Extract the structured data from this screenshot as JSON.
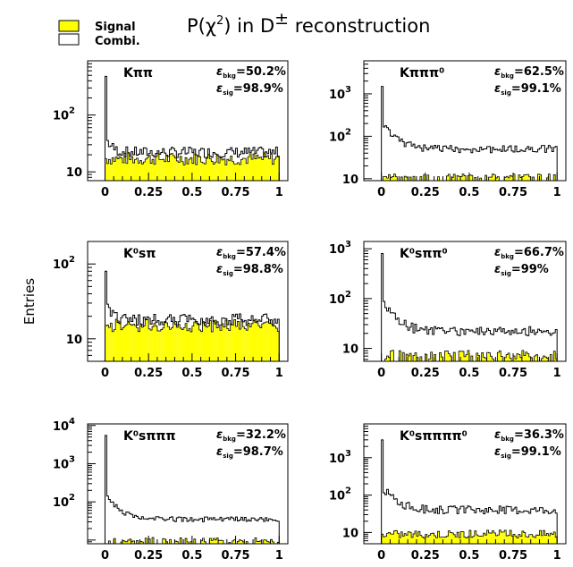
{
  "title": "P(χ²) in D± reconstruction",
  "title_parts": {
    "main": "P(χ",
    "sup2": "2",
    "mid": ") in D",
    "supPM": "±",
    "end": " reconstruction"
  },
  "y_axis_label": "Entries",
  "legend": [
    {
      "label": "Signal",
      "color": "#ffff00"
    },
    {
      "label": "Combi.",
      "color": "#ffffff"
    }
  ],
  "colors": {
    "signal_fill": "#ffff00",
    "outline": "#000000"
  },
  "chart_data": [
    {
      "type": "bar",
      "panel": "top-left",
      "channel": "Kππ",
      "eff_bkg": "=50.2%",
      "eff_sig": "=98.9%",
      "x_ticks": [
        "0",
        "0.25",
        "0.5",
        "0.75",
        "1"
      ],
      "xlim": [
        -0.1,
        1.05
      ],
      "y_scale": "log",
      "ylim": [
        7,
        900
      ],
      "y_ticks": [
        {
          "value": 10,
          "label": "10"
        },
        {
          "value": 100,
          "label": "10",
          "sup": "2"
        }
      ],
      "combi_peak": 480,
      "combi_level": 22,
      "signal_level": 17,
      "signal_jitter": 0.25,
      "combi_jitter": 0.22
    },
    {
      "type": "bar",
      "panel": "top-right",
      "channel": "Kπππ⁰",
      "eff_bkg": "=62.5%",
      "eff_sig": "=99.1%",
      "x_ticks": [
        "0",
        "0.25",
        "0.5",
        "0.75",
        "1"
      ],
      "xlim": [
        -0.1,
        1.05
      ],
      "y_scale": "log",
      "ylim": [
        9,
        6000
      ],
      "y_ticks": [
        {
          "value": 10,
          "label": "10"
        },
        {
          "value": 100,
          "label": "10",
          "sup": "2"
        },
        {
          "value": 1000,
          "label": "10",
          "sup": "3"
        }
      ],
      "combi_peak": 1500,
      "combi_level": 50,
      "combi_decay": true,
      "signal_level": 11.5,
      "signal_jitter": 0.12,
      "combi_jitter": 0.2,
      "signal_sparse": true
    },
    {
      "type": "bar",
      "panel": "middle-left",
      "channel": "K⁰sπ",
      "eff_bkg": "=57.4%",
      "eff_sig": "=98.8%",
      "x_ticks": [
        "0",
        "0.25",
        "0.5",
        "0.75",
        "1"
      ],
      "xlim": [
        -0.1,
        1.05
      ],
      "y_scale": "log",
      "ylim": [
        5,
        200
      ],
      "y_ticks": [
        {
          "value": 10,
          "label": "10"
        },
        {
          "value": 100,
          "label": "10",
          "sup": "2"
        }
      ],
      "combi_peak": 80,
      "combi_level": 18,
      "signal_level": 15,
      "signal_jitter": 0.2,
      "combi_jitter": 0.18
    },
    {
      "type": "bar",
      "panel": "middle-right",
      "channel": "K⁰sππ⁰",
      "eff_bkg": "=66.7%",
      "eff_sig": "=99%",
      "x_ticks": [
        "0",
        "0.25",
        "0.5",
        "0.75",
        "1"
      ],
      "xlim": [
        -0.1,
        1.05
      ],
      "y_scale": "log",
      "ylim": [
        5.5,
        1400
      ],
      "y_ticks": [
        {
          "value": 10,
          "label": "10"
        },
        {
          "value": 100,
          "label": "10",
          "sup": "2"
        },
        {
          "value": 1000,
          "label": "10",
          "sup": "3"
        }
      ],
      "combi_peak": 800,
      "combi_level": 22,
      "combi_decay": true,
      "signal_level": 7.5,
      "signal_jitter": 0.2,
      "combi_jitter": 0.22,
      "signal_sparse": true
    },
    {
      "type": "bar",
      "panel": "bottom-left",
      "channel": "K⁰sπππ",
      "eff_bkg": "=32.2%",
      "eff_sig": "=98.7%",
      "x_ticks": [
        "0",
        "0.25",
        "0.5",
        "0.75",
        "1"
      ],
      "xlim": [
        -0.1,
        1.05
      ],
      "y_scale": "log",
      "ylim": [
        8,
        11000
      ],
      "y_ticks": [
        {
          "value": 100,
          "label": "10",
          "sup": "2"
        },
        {
          "value": 1000,
          "label": "10",
          "sup": "3"
        },
        {
          "value": 10000,
          "label": "10",
          "sup": "4"
        }
      ],
      "combi_peak": 5500,
      "combi_level": 35,
      "combi_decay": true,
      "signal_level": 10,
      "signal_jitter": 0.15,
      "combi_jitter": 0.15,
      "signal_sparse": true
    },
    {
      "type": "bar",
      "panel": "bottom-right",
      "channel": "K⁰sππππ⁰",
      "eff_bkg": "=36.3%",
      "eff_sig": "=99.1%",
      "x_ticks": [
        "0",
        "0.25",
        "0.5",
        "0.75",
        "1"
      ],
      "xlim": [
        -0.1,
        1.05
      ],
      "y_scale": "log",
      "ylim": [
        5,
        8000
      ],
      "y_ticks": [
        {
          "value": 10,
          "label": "10"
        },
        {
          "value": 100,
          "label": "10",
          "sup": "2"
        },
        {
          "value": 1000,
          "label": "10",
          "sup": "3"
        }
      ],
      "combi_peak": 3000,
      "combi_level": 40,
      "combi_decay": true,
      "signal_level": 9,
      "signal_jitter": 0.25,
      "combi_jitter": 0.25
    }
  ]
}
